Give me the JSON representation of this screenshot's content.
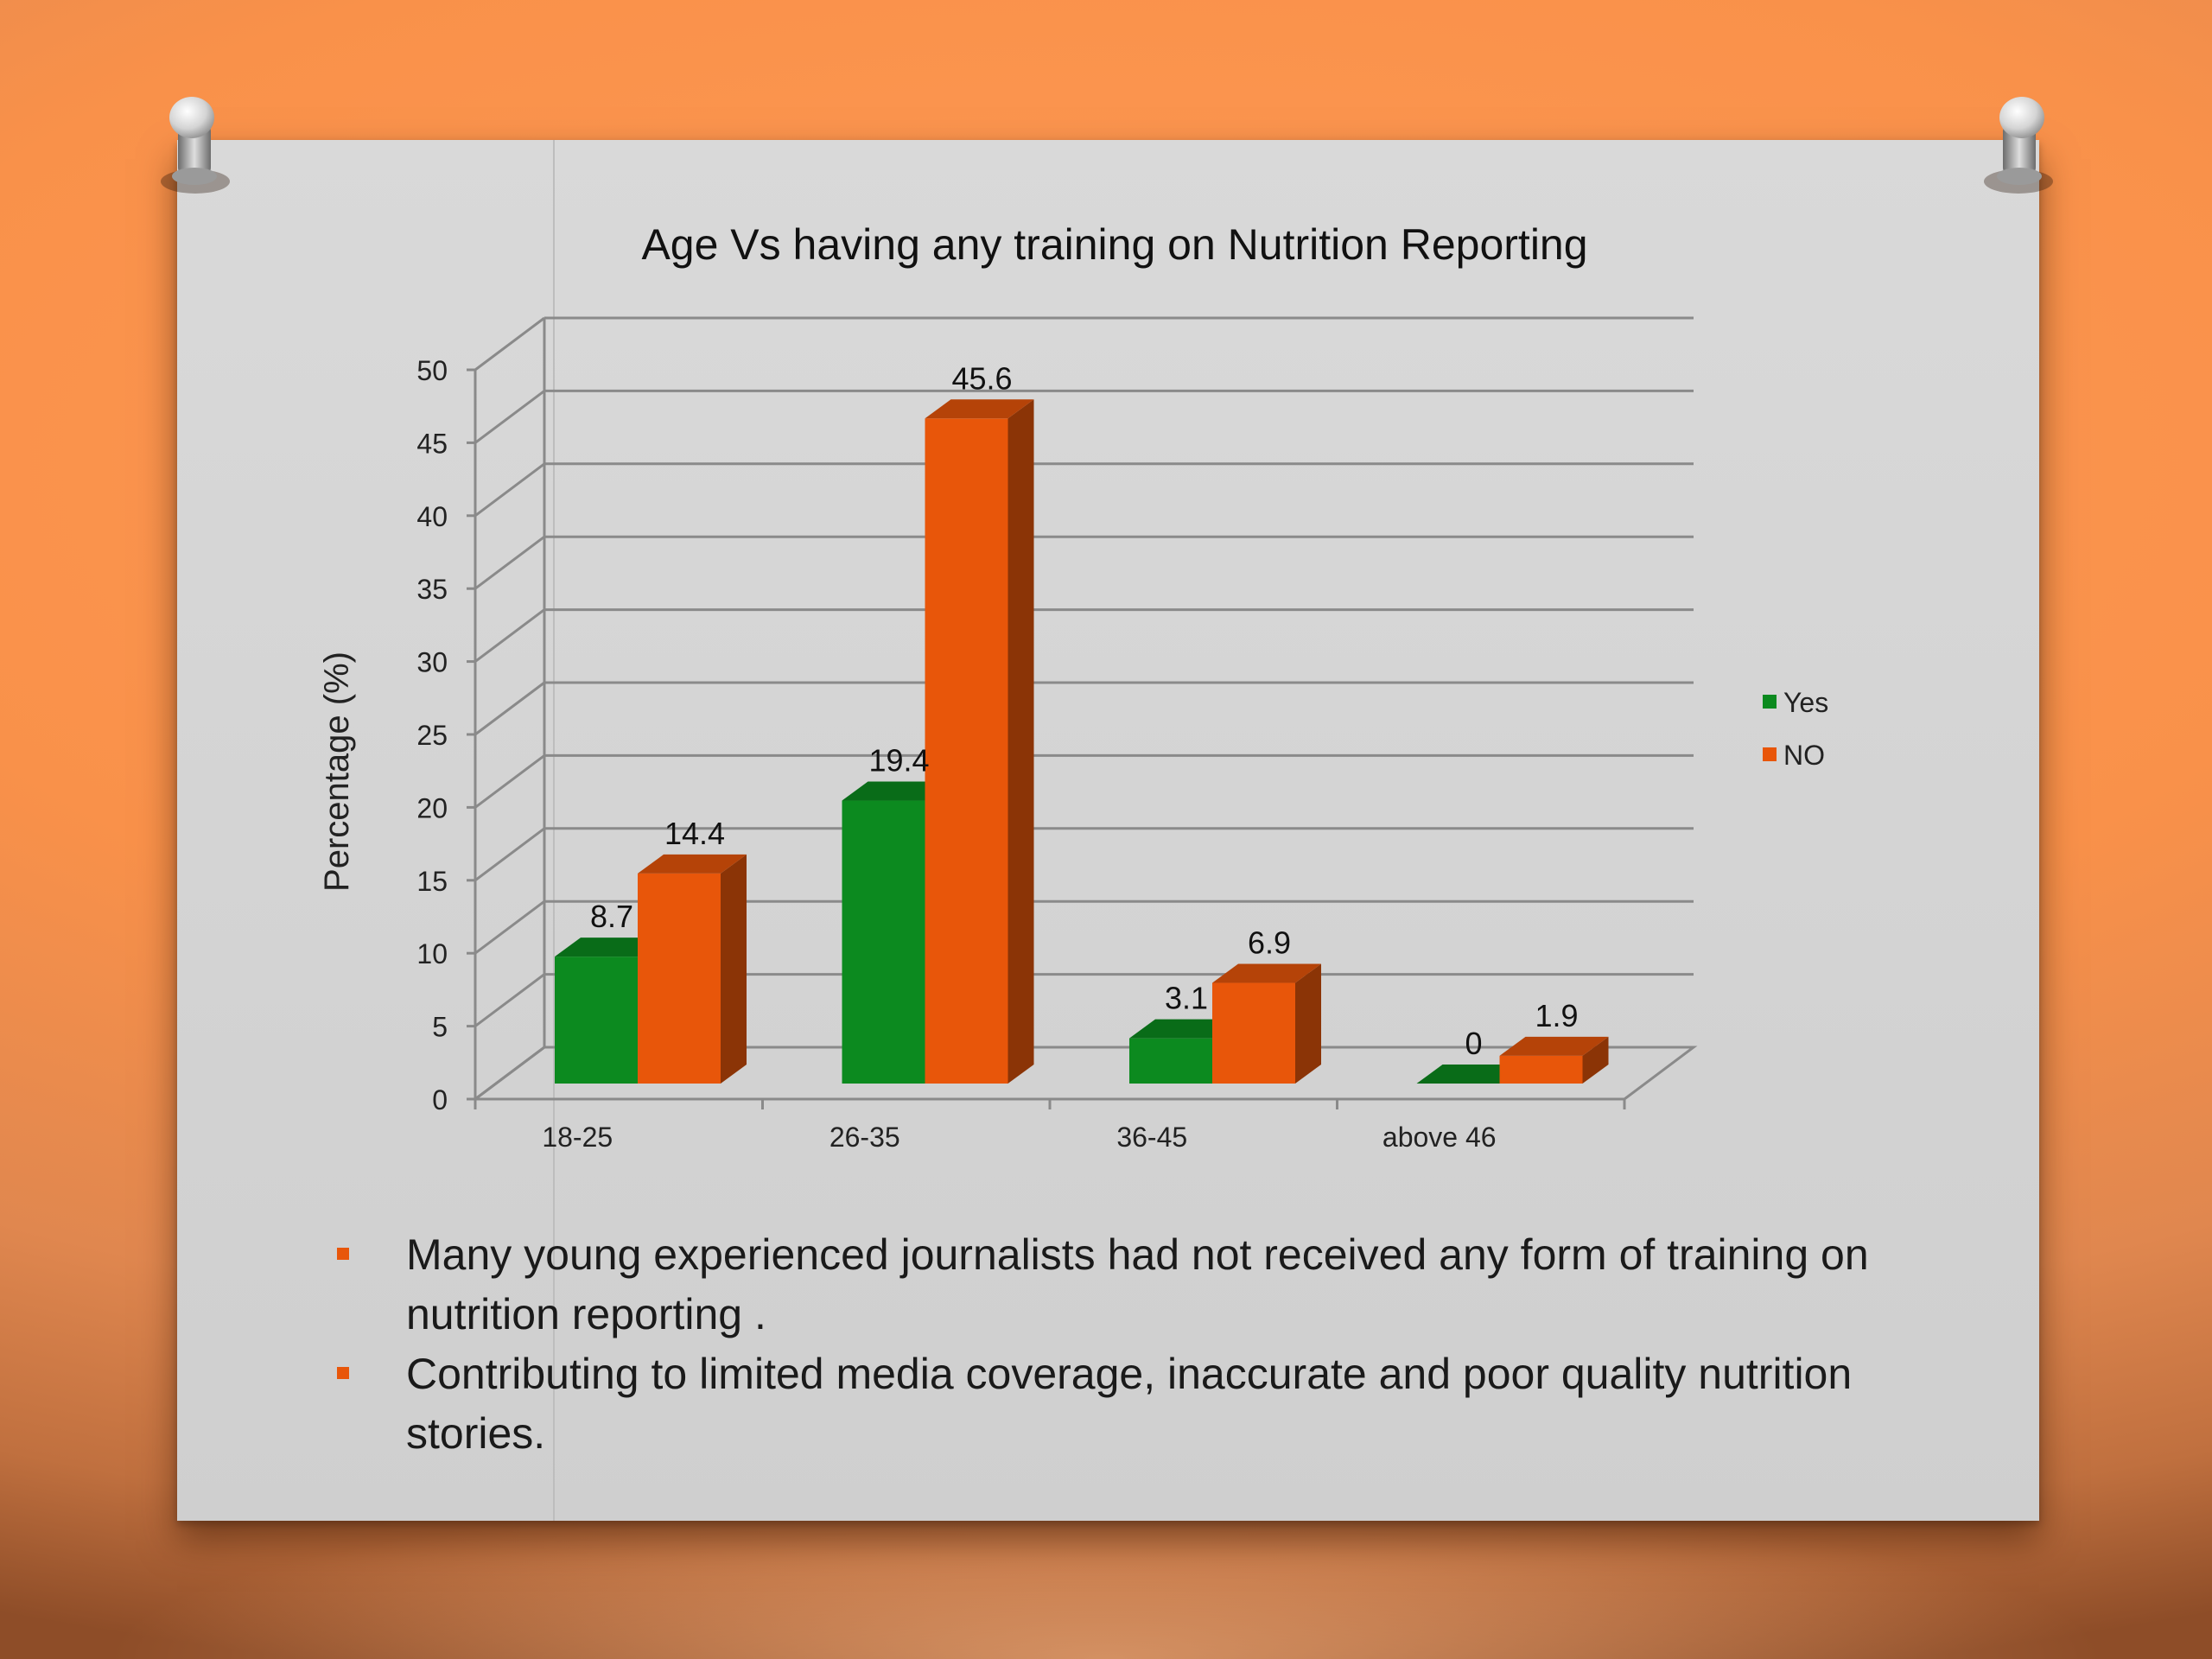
{
  "slide": {
    "bullets": [
      "Many young experienced journalists had not received any form of training on nutrition reporting .",
      "Contributing to limited media coverage, inaccurate and poor quality nutrition stories."
    ]
  },
  "colors": {
    "yes": "#0c8a1f",
    "no": "#e8560a",
    "bullet": "#e8560a",
    "grid": "#8a8a8a"
  },
  "chart_data": {
    "type": "bar",
    "title": "Age Vs having any training on Nutrition Reporting",
    "ylabel": "Percentage (%)",
    "xlabel": "",
    "categories": [
      "18-25",
      "26-35",
      "36-45",
      "above 46"
    ],
    "series": [
      {
        "name": "Yes",
        "values": [
          8.7,
          19.4,
          3.1,
          0
        ]
      },
      {
        "name": "NO",
        "values": [
          14.4,
          45.6,
          6.9,
          1.9
        ]
      }
    ],
    "data_labels": [
      [
        "8.7",
        "19.4",
        "3.1",
        "0"
      ],
      [
        "14.4",
        "45.6",
        "6.9",
        "1.9"
      ]
    ],
    "ylim": [
      0,
      50
    ],
    "yticks": [
      "0",
      "5",
      "10",
      "15",
      "20",
      "25",
      "30",
      "35",
      "40",
      "45",
      "50"
    ],
    "legend": "right",
    "grid": true,
    "style": "3d-clustered-column"
  }
}
